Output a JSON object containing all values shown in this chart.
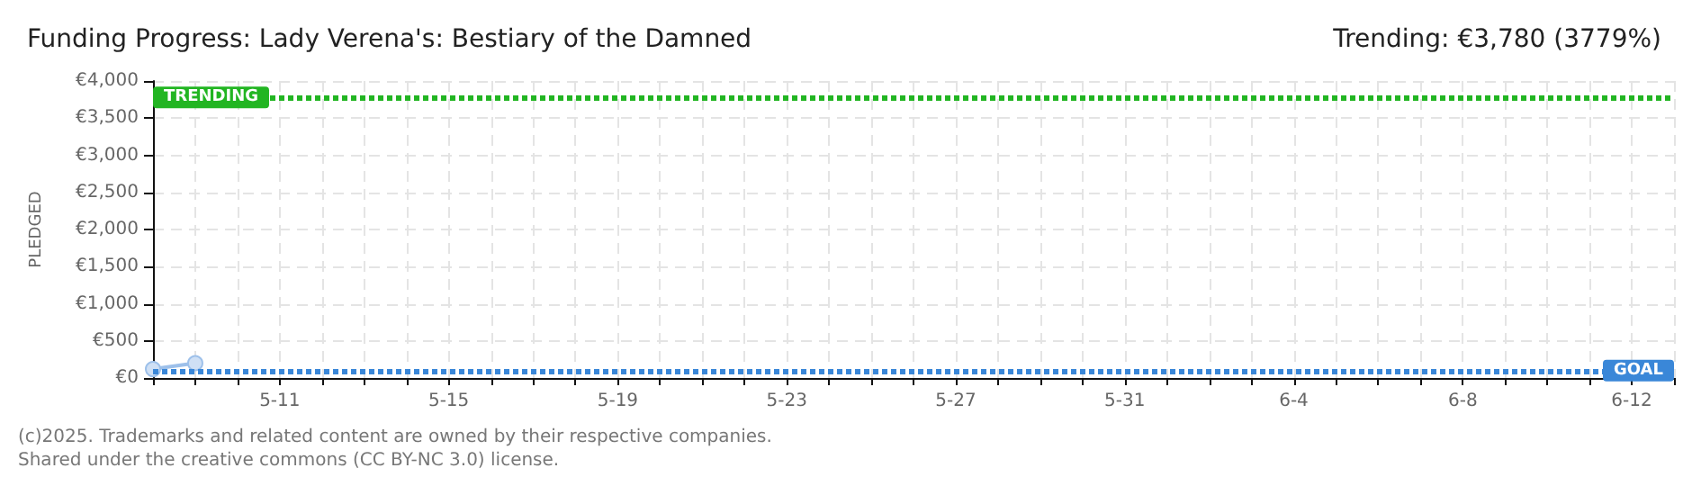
{
  "chart_data": {
    "type": "line",
    "title": "Funding Progress: Lady Verena's: Bestiary of the Damned",
    "subtitle": "Trending: €3,780 (3779%)",
    "ylabel": "PLEDGED",
    "x": [
      "--05-08",
      "--05-09"
    ],
    "series": [
      {
        "color": "#9dc0ea",
        "values": [
          120,
          200
        ]
      }
    ],
    "xlim": [
      "--05-08",
      "--06-13"
    ],
    "xticks": [
      {
        "value": "--05-08",
        "label": null
      },
      {
        "value": "--05-09",
        "label": null
      },
      {
        "value": "--05-10",
        "label": null
      },
      {
        "value": "--05-11",
        "label": "5-11"
      },
      {
        "value": "--05-12",
        "label": null
      },
      {
        "value": "--05-13",
        "label": null
      },
      {
        "value": "--05-14",
        "label": null
      },
      {
        "value": "--05-15",
        "label": "5-15"
      },
      {
        "value": "--05-16",
        "label": null
      },
      {
        "value": "--05-17",
        "label": null
      },
      {
        "value": "--05-18",
        "label": null
      },
      {
        "value": "--05-19",
        "label": "5-19"
      },
      {
        "value": "--05-20",
        "label": null
      },
      {
        "value": "--05-21",
        "label": null
      },
      {
        "value": "--05-22",
        "label": null
      },
      {
        "value": "--05-23",
        "label": "5-23"
      },
      {
        "value": "--05-24",
        "label": null
      },
      {
        "value": "--05-25",
        "label": null
      },
      {
        "value": "--05-26",
        "label": null
      },
      {
        "value": "--05-27",
        "label": "5-27"
      },
      {
        "value": "--05-28",
        "label": null
      },
      {
        "value": "--05-29",
        "label": null
      },
      {
        "value": "--05-30",
        "label": null
      },
      {
        "value": "--05-31",
        "label": "5-31"
      },
      {
        "value": "--06-01",
        "label": null
      },
      {
        "value": "--06-02",
        "label": null
      },
      {
        "value": "--06-03",
        "label": null
      },
      {
        "value": "--06-04",
        "label": "6-4"
      },
      {
        "value": "--06-05",
        "label": null
      },
      {
        "value": "--06-06",
        "label": null
      },
      {
        "value": "--06-07",
        "label": null
      },
      {
        "value": "--06-08",
        "label": "6-8"
      },
      {
        "value": "--06-09",
        "label": null
      },
      {
        "value": "--06-10",
        "label": null
      },
      {
        "value": "--06-11",
        "label": null
      },
      {
        "value": "--06-12",
        "label": "6-12"
      },
      {
        "value": "--06-13",
        "label": null
      }
    ],
    "ylim": [
      0,
      4000
    ],
    "yticks": [
      {
        "value": 0,
        "label": "€0"
      },
      {
        "value": 500,
        "label": "€500"
      },
      {
        "value": 1000,
        "label": "€1,000"
      },
      {
        "value": 1500,
        "label": "€1,500"
      },
      {
        "value": 2000,
        "label": "€2,000"
      },
      {
        "value": 2500,
        "label": "€2,500"
      },
      {
        "value": 3000,
        "label": "€3,000"
      },
      {
        "value": 3500,
        "label": "€3,500"
      },
      {
        "value": 4000,
        "label": "€4,000"
      }
    ],
    "ref_lines": [
      {
        "axis": "y",
        "value": 3780,
        "label": "TRENDING",
        "color": "#22b522",
        "line_style": "dotted"
      },
      {
        "axis": "y",
        "value": 100,
        "label": "GOAL",
        "color": "#3a87d8",
        "line_style": "dotted"
      }
    ],
    "annotations": [
      "(c)2025. Trademarks and related content are owned by their respective companies.",
      "Shared under the creative commons (CC BY-NC 3.0) license."
    ],
    "grid": true,
    "marker": "circle",
    "line_style": "solid"
  }
}
